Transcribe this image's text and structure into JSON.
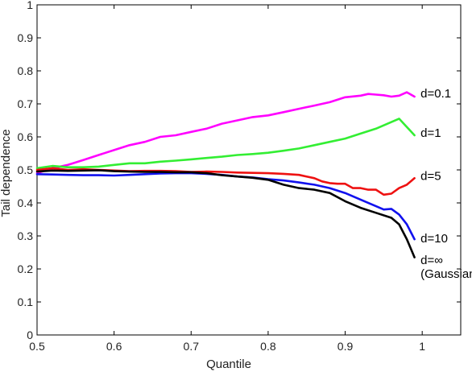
{
  "chart_data": {
    "type": "line",
    "title": "",
    "xlabel": "Quantile",
    "ylabel": "Tail dependence",
    "xlim": [
      0.5,
      1.05
    ],
    "ylim": [
      0,
      1
    ],
    "xticks": [
      0.5,
      0.6,
      0.7,
      0.8,
      0.9,
      1
    ],
    "xtick_labels": [
      "0.5",
      "0.6",
      "0.7",
      "0.8",
      "0.9",
      "1"
    ],
    "yticks": [
      0,
      0.1,
      0.2,
      0.3,
      0.4,
      0.5,
      0.6,
      0.7,
      0.8,
      0.9,
      1
    ],
    "ytick_labels": [
      "0",
      "0.1",
      "0.2",
      "0.3",
      "0.4",
      "0.5",
      "0.6",
      "0.7",
      "0.8",
      "0.9",
      "1"
    ],
    "grid": false,
    "legend": "none",
    "series": [
      {
        "name": "d=0.1",
        "color": "#ff00ff",
        "points": [
          [
            0.5,
            0.49
          ],
          [
            0.52,
            0.505
          ],
          [
            0.54,
            0.515
          ],
          [
            0.56,
            0.53
          ],
          [
            0.58,
            0.545
          ],
          [
            0.6,
            0.56
          ],
          [
            0.62,
            0.575
          ],
          [
            0.64,
            0.585
          ],
          [
            0.66,
            0.6
          ],
          [
            0.68,
            0.605
          ],
          [
            0.7,
            0.615
          ],
          [
            0.72,
            0.625
          ],
          [
            0.74,
            0.64
          ],
          [
            0.76,
            0.65
          ],
          [
            0.78,
            0.66
          ],
          [
            0.8,
            0.665
          ],
          [
            0.82,
            0.675
          ],
          [
            0.84,
            0.685
          ],
          [
            0.86,
            0.695
          ],
          [
            0.88,
            0.705
          ],
          [
            0.9,
            0.72
          ],
          [
            0.92,
            0.725
          ],
          [
            0.93,
            0.73
          ],
          [
            0.94,
            0.728
          ],
          [
            0.95,
            0.726
          ],
          [
            0.96,
            0.722
          ],
          [
            0.97,
            0.725
          ],
          [
            0.98,
            0.735
          ],
          [
            0.99,
            0.722
          ]
        ],
        "label_lines": [
          "d=0.1"
        ],
        "label_at": [
          1.0,
          0.72
        ]
      },
      {
        "name": "d=1",
        "color": "#33ee33",
        "points": [
          [
            0.5,
            0.505
          ],
          [
            0.52,
            0.512
          ],
          [
            0.54,
            0.508
          ],
          [
            0.56,
            0.508
          ],
          [
            0.58,
            0.51
          ],
          [
            0.6,
            0.515
          ],
          [
            0.62,
            0.52
          ],
          [
            0.64,
            0.52
          ],
          [
            0.66,
            0.525
          ],
          [
            0.68,
            0.528
          ],
          [
            0.7,
            0.532
          ],
          [
            0.72,
            0.536
          ],
          [
            0.74,
            0.54
          ],
          [
            0.76,
            0.545
          ],
          [
            0.78,
            0.548
          ],
          [
            0.8,
            0.552
          ],
          [
            0.82,
            0.558
          ],
          [
            0.84,
            0.565
          ],
          [
            0.86,
            0.575
          ],
          [
            0.88,
            0.585
          ],
          [
            0.9,
            0.595
          ],
          [
            0.92,
            0.61
          ],
          [
            0.94,
            0.625
          ],
          [
            0.96,
            0.645
          ],
          [
            0.97,
            0.655
          ],
          [
            0.98,
            0.63
          ],
          [
            0.99,
            0.605
          ]
        ],
        "label_lines": [
          "d=1"
        ],
        "label_at": [
          1.0,
          0.6
        ]
      },
      {
        "name": "d=5",
        "color": "#ee1111",
        "points": [
          [
            0.5,
            0.5
          ],
          [
            0.52,
            0.505
          ],
          [
            0.54,
            0.5
          ],
          [
            0.56,
            0.502
          ],
          [
            0.58,
            0.5
          ],
          [
            0.6,
            0.498
          ],
          [
            0.62,
            0.496
          ],
          [
            0.64,
            0.497
          ],
          [
            0.66,
            0.497
          ],
          [
            0.68,
            0.496
          ],
          [
            0.7,
            0.494
          ],
          [
            0.72,
            0.495
          ],
          [
            0.74,
            0.494
          ],
          [
            0.76,
            0.492
          ],
          [
            0.78,
            0.491
          ],
          [
            0.8,
            0.49
          ],
          [
            0.82,
            0.488
          ],
          [
            0.84,
            0.485
          ],
          [
            0.86,
            0.475
          ],
          [
            0.87,
            0.465
          ],
          [
            0.88,
            0.46
          ],
          [
            0.89,
            0.458
          ],
          [
            0.9,
            0.458
          ],
          [
            0.91,
            0.445
          ],
          [
            0.92,
            0.445
          ],
          [
            0.93,
            0.44
          ],
          [
            0.94,
            0.44
          ],
          [
            0.95,
            0.425
          ],
          [
            0.96,
            0.428
          ],
          [
            0.97,
            0.445
          ],
          [
            0.98,
            0.455
          ],
          [
            0.99,
            0.475
          ]
        ],
        "label_lines": [
          "d=5"
        ],
        "label_at": [
          1.0,
          0.47
        ]
      },
      {
        "name": "d=10",
        "color": "#1111ee",
        "points": [
          [
            0.5,
            0.487
          ],
          [
            0.52,
            0.486
          ],
          [
            0.54,
            0.485
          ],
          [
            0.56,
            0.484
          ],
          [
            0.58,
            0.484
          ],
          [
            0.6,
            0.483
          ],
          [
            0.62,
            0.485
          ],
          [
            0.64,
            0.487
          ],
          [
            0.66,
            0.489
          ],
          [
            0.68,
            0.49
          ],
          [
            0.7,
            0.49
          ],
          [
            0.72,
            0.488
          ],
          [
            0.74,
            0.485
          ],
          [
            0.76,
            0.48
          ],
          [
            0.78,
            0.477
          ],
          [
            0.8,
            0.472
          ],
          [
            0.82,
            0.468
          ],
          [
            0.84,
            0.462
          ],
          [
            0.86,
            0.455
          ],
          [
            0.88,
            0.445
          ],
          [
            0.9,
            0.43
          ],
          [
            0.92,
            0.41
          ],
          [
            0.94,
            0.39
          ],
          [
            0.95,
            0.38
          ],
          [
            0.96,
            0.382
          ],
          [
            0.97,
            0.365
          ],
          [
            0.98,
            0.335
          ],
          [
            0.99,
            0.29
          ]
        ],
        "label_lines": [
          "d=10"
        ],
        "label_at": [
          1.0,
          0.28
        ]
      },
      {
        "name": "d=∞ (Gaussian)",
        "color": "#000000",
        "points": [
          [
            0.5,
            0.495
          ],
          [
            0.52,
            0.498
          ],
          [
            0.54,
            0.497
          ],
          [
            0.56,
            0.498
          ],
          [
            0.58,
            0.499
          ],
          [
            0.6,
            0.496
          ],
          [
            0.62,
            0.495
          ],
          [
            0.64,
            0.494
          ],
          [
            0.66,
            0.494
          ],
          [
            0.68,
            0.493
          ],
          [
            0.7,
            0.493
          ],
          [
            0.72,
            0.49
          ],
          [
            0.74,
            0.484
          ],
          [
            0.76,
            0.48
          ],
          [
            0.78,
            0.476
          ],
          [
            0.8,
            0.47
          ],
          [
            0.82,
            0.455
          ],
          [
            0.84,
            0.445
          ],
          [
            0.86,
            0.44
          ],
          [
            0.88,
            0.43
          ],
          [
            0.9,
            0.405
          ],
          [
            0.92,
            0.385
          ],
          [
            0.94,
            0.37
          ],
          [
            0.96,
            0.355
          ],
          [
            0.97,
            0.335
          ],
          [
            0.98,
            0.29
          ],
          [
            0.99,
            0.235
          ]
        ],
        "label_lines": [
          "d=∞",
          "(Gaussian)"
        ],
        "label_at": [
          1.0,
          0.215
        ]
      }
    ]
  }
}
